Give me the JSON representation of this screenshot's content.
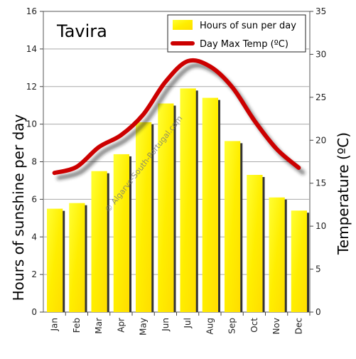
{
  "chart_data": {
    "type": "bar",
    "title": "Tavira",
    "categories": [
      "Jan",
      "Feb",
      "Mar",
      "Apr",
      "May",
      "Jun",
      "Jul",
      "Aug",
      "Sep",
      "Oct",
      "Nov",
      "Dec"
    ],
    "series": [
      {
        "name": "Hours of sun per day",
        "type": "bar",
        "axis": "left",
        "color": "#ffff00",
        "values": [
          5.5,
          5.8,
          7.5,
          8.4,
          10.1,
          11.1,
          11.9,
          11.4,
          9.1,
          7.3,
          6.1,
          5.4
        ]
      },
      {
        "name": "Day Max Temp (ºC)",
        "type": "line",
        "axis": "right",
        "color": "#cc0000",
        "values": [
          16.2,
          16.9,
          19.2,
          20.6,
          23.0,
          26.8,
          29.2,
          28.6,
          26.2,
          22.3,
          19.0,
          16.8
        ]
      }
    ],
    "ylabel": "Hours of sunshine per day",
    "ylabel_right": "Temperature (ºC)",
    "ylim": [
      0,
      16
    ],
    "ylim_right": [
      0,
      35
    ],
    "yticks": [
      0,
      2,
      4,
      6,
      8,
      10,
      12,
      14,
      16
    ],
    "yticks_right": [
      0,
      5,
      10,
      15,
      20,
      25,
      30,
      35
    ],
    "grid": true,
    "legend_position": "top-right",
    "watermark": "© Algarve-South-Portugal.com"
  }
}
